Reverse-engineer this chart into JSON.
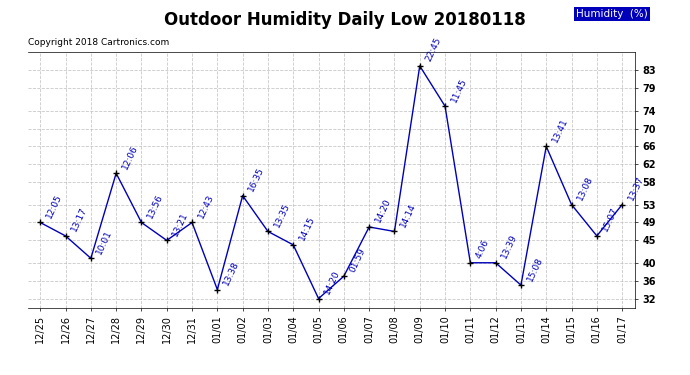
{
  "title": "Outdoor Humidity Daily Low 20180118",
  "copyright": "Copyright 2018 Cartronics.com",
  "legend_label": "Humidity  (%)",
  "dates": [
    "12/25",
    "12/26",
    "12/27",
    "12/28",
    "12/29",
    "12/30",
    "12/31",
    "01/01",
    "01/02",
    "01/03",
    "01/04",
    "01/05",
    "01/06",
    "01/07",
    "01/08",
    "01/09",
    "01/10",
    "01/11",
    "01/12",
    "01/13",
    "01/14",
    "01/15",
    "01/16",
    "01/17"
  ],
  "values": [
    49,
    46,
    41,
    60,
    49,
    45,
    49,
    34,
    55,
    47,
    44,
    32,
    37,
    48,
    47,
    84,
    75,
    40,
    40,
    35,
    66,
    53,
    46,
    53
  ],
  "labels": [
    "12:05",
    "13:17",
    "10:01",
    "12:06",
    "13:56",
    "13:21",
    "12:43",
    "13:38",
    "16:35",
    "13:35",
    "14:15",
    "14:20",
    "01:59",
    "14:20",
    "14:14",
    "22:45",
    "11:45",
    "4:06",
    "13:39",
    "15:08",
    "13:41",
    "13:08",
    "15:07",
    "13:37"
  ],
  "ylim": [
    30,
    87
  ],
  "yticks": [
    32,
    36,
    40,
    45,
    49,
    53,
    58,
    62,
    66,
    70,
    74,
    79,
    83
  ],
  "line_color": "#0000bb",
  "marker_color": "#000000",
  "label_color": "#0000bb",
  "background_color": "#ffffff",
  "grid_color": "#bbbbbb",
  "title_fontsize": 12,
  "label_fontsize": 6.5,
  "tick_fontsize": 7,
  "copyright_fontsize": 6.5
}
